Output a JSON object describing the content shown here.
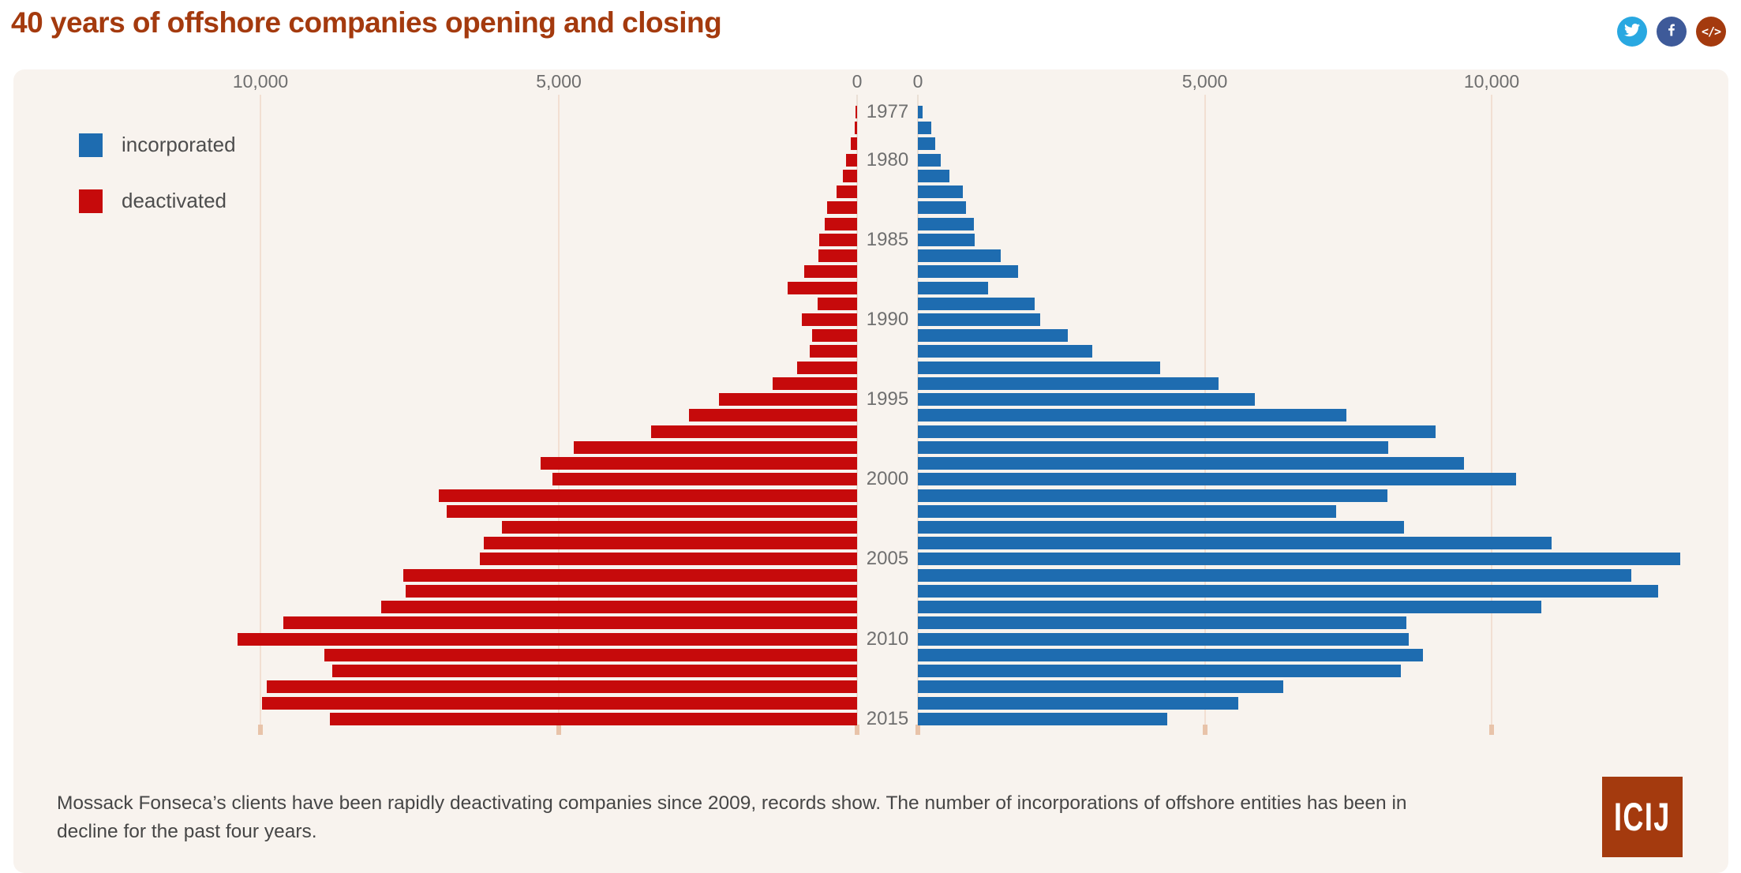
{
  "header": {
    "title": "40 years of offshore companies opening and closing",
    "social": [
      {
        "name": "twitter",
        "label": "share on twitter"
      },
      {
        "name": "facebook",
        "label": "share on facebook"
      },
      {
        "name": "embed",
        "label": "embed chart",
        "glyph": "</>"
      }
    ]
  },
  "colors": {
    "accent": "#a43a0e",
    "incorporated": "#1e6cb0",
    "deactivated": "#c60a0b",
    "twitter": "#29a8e1",
    "facebook": "#3e5a99",
    "card_bg": "#f8f3ee",
    "gridline": "#f2dfd2",
    "zero_line": "#eadfd5",
    "tick": "#e8c3a9",
    "axis_text": "#6e6e6e"
  },
  "legend": [
    {
      "label": "incorporated",
      "series": "incorporated"
    },
    {
      "label": "deactivated",
      "series": "deactivated"
    }
  ],
  "chart_data": {
    "type": "bar",
    "variant": "horizontal-pyramid",
    "title": "40 years of offshore companies opening and closing",
    "years": [
      1977,
      1978,
      1979,
      1980,
      1981,
      1982,
      1983,
      1984,
      1985,
      1986,
      1987,
      1988,
      1989,
      1990,
      1991,
      1992,
      1993,
      1994,
      1995,
      1996,
      1997,
      1998,
      1999,
      2000,
      2001,
      2002,
      2003,
      2004,
      2005,
      2006,
      2007,
      2008,
      2009,
      2010,
      2011,
      2012,
      2013,
      2014,
      2015
    ],
    "series": [
      {
        "name": "incorporated",
        "side": "right",
        "color": "#1e6cb0",
        "values": [
          80,
          230,
          300,
          400,
          550,
          780,
          840,
          975,
          985,
          1450,
          1750,
          1220,
          2030,
          2130,
          2620,
          3040,
          4220,
          5240,
          5870,
          7470,
          9020,
          8200,
          9520,
          10420,
          8180,
          7290,
          8470,
          11050,
          13290,
          12440,
          12900,
          10870,
          8510,
          8560,
          8800,
          8420,
          6370,
          5590,
          4340
        ]
      },
      {
        "name": "deactivated",
        "side": "left",
        "color": "#c60a0b",
        "values": [
          30,
          40,
          110,
          185,
          240,
          350,
          505,
          545,
          640,
          650,
          880,
          1165,
          660,
          920,
          760,
          800,
          1000,
          1420,
          2310,
          2820,
          3450,
          4750,
          5300,
          5100,
          7010,
          6880,
          5950,
          6260,
          6320,
          7600,
          7560,
          7970,
          9610,
          10390,
          8930,
          8800,
          9900,
          9970,
          8840
        ]
      }
    ],
    "year_axis_labels": [
      1977,
      1980,
      1985,
      1990,
      1995,
      2000,
      2005,
      2010,
      2015
    ],
    "value_axis": {
      "max": 10000,
      "left_ticks": [
        {
          "label": "10,000",
          "value": 10000
        },
        {
          "label": "5,000",
          "value": 5000
        },
        {
          "label": "0",
          "value": 0
        }
      ],
      "right_ticks": [
        {
          "label": "0",
          "value": 0
        },
        {
          "label": "5,000",
          "value": 5000
        },
        {
          "label": "10,000",
          "value": 10000
        }
      ],
      "gridlines_at": [
        5000,
        10000
      ],
      "grid": true
    },
    "legend_position": "top-left"
  },
  "footer": {
    "note": "Mossack Fonseca’s clients have been rapidly deactivating companies since 2009, records show. The number of incorporations of offshore entities has been in decline for the past four years.",
    "logo_text": "ICIJ"
  }
}
